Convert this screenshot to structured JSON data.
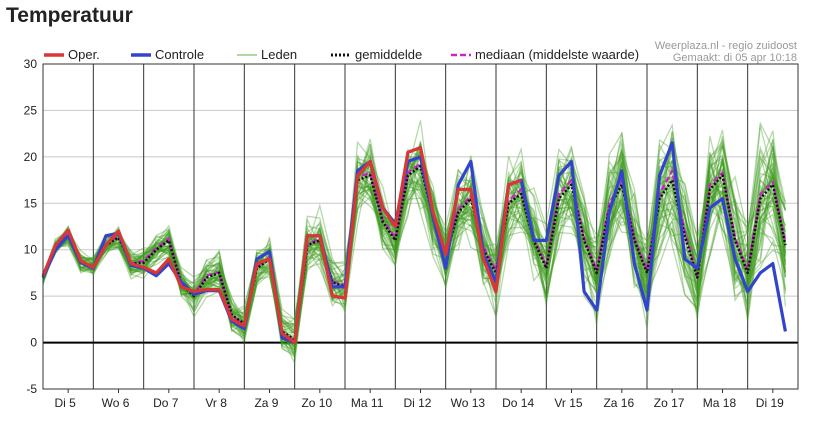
{
  "page": {
    "title": "Temperatuur"
  },
  "source": {
    "line1": "Weerplaza.nl - regio zuidoost",
    "line2": "Gemaakt: di 05 apr 10:18"
  },
  "colors": {
    "oper": "#d93636",
    "controle": "#3344cc",
    "leden": "#3f9a1f",
    "mean": "#111111",
    "median": "#cc22cc",
    "zero": "#000000",
    "grid": "#c8c8c8",
    "daydivider": "#333333"
  },
  "chart_data": {
    "type": "line",
    "title": "Temperatuur",
    "ylim": [
      -5,
      30
    ],
    "yticks": [
      -5,
      0,
      5,
      10,
      15,
      20,
      25,
      30
    ],
    "grid": true,
    "legend_position": "top",
    "categories": [
      "Di 5",
      "Wo 6",
      "Do 7",
      "Vr 8",
      "Za 9",
      "Zo 10",
      "Ma 11",
      "Di 12",
      "Wo 13",
      "Do 14",
      "Vr 15",
      "Za 16",
      "Zo 17",
      "Ma 18",
      "Di 19"
    ],
    "x": [
      0,
      0.25,
      0.5,
      0.75,
      1,
      1.25,
      1.5,
      1.75,
      2,
      2.25,
      2.5,
      2.75,
      3,
      3.25,
      3.5,
      3.75,
      4,
      4.25,
      4.5,
      4.75,
      5,
      5.25,
      5.5,
      5.75,
      6,
      6.25,
      6.5,
      6.75,
      7,
      7.25,
      7.5,
      7.75,
      8,
      8.25,
      8.5,
      8.75,
      9,
      9.25,
      9.5,
      9.75,
      10,
      10.25,
      10.5,
      10.75,
      11,
      11.25,
      11.5,
      11.75,
      12,
      12.25,
      12.5,
      12.75,
      13,
      13.25,
      13.5,
      13.75,
      14,
      14.25,
      14.5,
      14.75
    ],
    "series": [
      {
        "name": "Oper.",
        "values": [
          7.2,
          10.5,
          12.1,
          8.8,
          8.1,
          10.5,
          12.0,
          8.5,
          8.1,
          7.5,
          9.0,
          6.0,
          5.5,
          5.7,
          5.7,
          2.5,
          1.8,
          8.5,
          9.0,
          1.0,
          0.0,
          11.5,
          11.5,
          5.0,
          4.8,
          18.0,
          19.5,
          14.5,
          12.5,
          20.5,
          21.0,
          14.0,
          9.5,
          16.5,
          16.5,
          9.0,
          5.5,
          17.0,
          17.5,
          null,
          null,
          null,
          null,
          null,
          null,
          null,
          null,
          null,
          null,
          null,
          null,
          null,
          null,
          null,
          null,
          null,
          null,
          null,
          null,
          null
        ]
      },
      {
        "name": "Controle",
        "values": [
          7.0,
          10.0,
          11.5,
          8.6,
          8.0,
          11.5,
          11.8,
          8.3,
          8.0,
          7.2,
          8.5,
          6.5,
          5.2,
          5.6,
          5.6,
          2.3,
          1.5,
          9.0,
          9.8,
          0.5,
          0.0,
          11.5,
          11.5,
          6.0,
          6.0,
          18.5,
          19.5,
          14.5,
          12.8,
          19.5,
          20.0,
          13.5,
          8.0,
          17.0,
          19.5,
          9.5,
          6.5,
          17.0,
          17.5,
          11.0,
          11.0,
          18.0,
          19.5,
          5.5,
          3.5,
          14.0,
          18.5,
          8.5,
          3.5,
          18.0,
          21.5,
          9.0,
          8.0,
          14.5,
          15.5,
          9.0,
          5.5,
          7.5,
          8.5,
          1.2
        ]
      },
      {
        "name": "gemiddelde",
        "values": [
          7.0,
          10.3,
          11.5,
          8.7,
          8.2,
          10.5,
          11.3,
          8.5,
          8.6,
          10.0,
          11.0,
          6.3,
          5.0,
          7.0,
          7.5,
          3.0,
          2.0,
          8.0,
          9.0,
          1.2,
          0.3,
          10.5,
          11.0,
          6.5,
          6.0,
          17.5,
          18.0,
          13.0,
          11.0,
          18.0,
          19.0,
          13.5,
          9.5,
          14.0,
          15.5,
          10.0,
          7.5,
          15.0,
          16.0,
          11.0,
          8.0,
          15.5,
          17.0,
          11.0,
          7.5,
          14.5,
          17.0,
          11.0,
          7.5,
          15.5,
          17.5,
          11.5,
          7.0,
          16.5,
          18.0,
          11.0,
          7.5,
          15.5,
          17.0,
          10.5
        ]
      },
      {
        "name": "mediaan (middelste waarde)",
        "values": [
          7.0,
          10.4,
          11.6,
          8.7,
          8.2,
          10.6,
          11.4,
          8.5,
          8.8,
          10.2,
          11.2,
          6.2,
          5.2,
          7.2,
          7.6,
          2.8,
          2.0,
          8.2,
          9.2,
          1.0,
          0.2,
          10.6,
          11.2,
          6.6,
          6.2,
          17.8,
          18.3,
          13.2,
          11.3,
          18.3,
          19.3,
          13.8,
          9.8,
          14.4,
          15.8,
          10.3,
          7.8,
          15.3,
          16.5,
          11.3,
          8.3,
          16.0,
          17.5,
          11.3,
          7.8,
          15.0,
          17.5,
          11.3,
          7.8,
          16.0,
          18.5,
          12.0,
          7.3,
          17.0,
          18.3,
          11.3,
          7.8,
          16.0,
          17.3,
          10.8
        ]
      }
    ],
    "members_label": "Leden",
    "members_count": 50
  },
  "legend": [
    {
      "label": "Oper.",
      "key": "oper"
    },
    {
      "label": "Controle",
      "key": "controle"
    },
    {
      "label": "Leden",
      "key": "leden"
    },
    {
      "label": "gemiddelde",
      "key": "mean"
    },
    {
      "label": "mediaan (middelste waarde)",
      "key": "median"
    }
  ]
}
